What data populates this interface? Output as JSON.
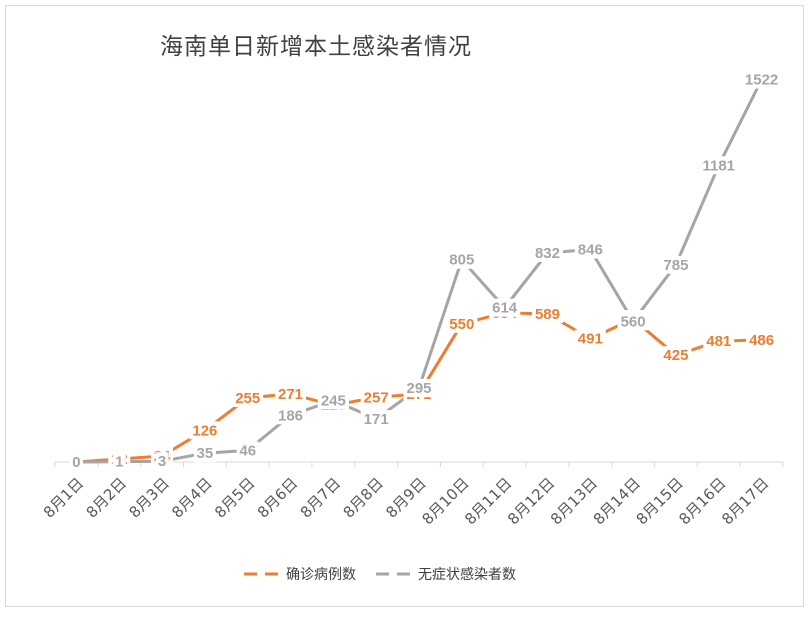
{
  "chart_data": {
    "type": "line",
    "title": "海南单日新增本土感染者情况",
    "categories": [
      "8月1日",
      "8月2日",
      "8月3日",
      "8月4日",
      "8月5日",
      "8月6日",
      "8月7日",
      "8月8日",
      "8月9日",
      "8月10日",
      "8月11日",
      "8月12日",
      "8月13日",
      "8月14日",
      "8月15日",
      "8月16日",
      "8月17日"
    ],
    "series": [
      {
        "name": "确诊病例数",
        "color": "#ED7D31",
        "values": [
          0,
          12,
          24,
          126,
          255,
          271,
          226,
          257,
          271,
          550,
          594,
          589,
          491,
          569,
          425,
          481,
          486
        ]
      },
      {
        "name": "无症状感染者数",
        "color": "#A5A5A5",
        "values": [
          0,
          1,
          3,
          35,
          46,
          186,
          245,
          171,
          295,
          805,
          614,
          832,
          846,
          560,
          785,
          1181,
          1522
        ]
      }
    ],
    "ylim": [
      0,
      1600
    ],
    "legend": "bottom",
    "grid": false
  }
}
